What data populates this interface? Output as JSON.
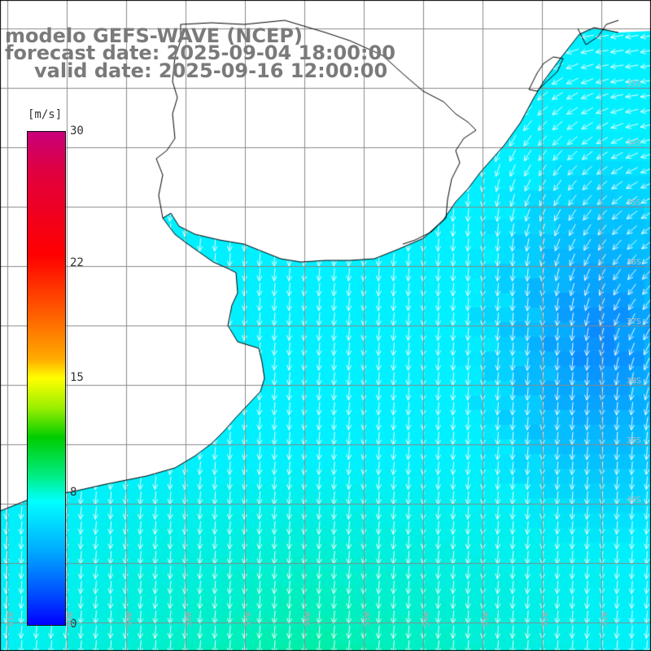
{
  "title": {
    "line1": "modelo GEFS-WAVE (NCEP)",
    "line2": "forecast date: 2025-09-04 18:00:00",
    "line3": "valid date: 2025-09-16 12:00:00"
  },
  "colorbar": {
    "unit": "[m/s]",
    "ticks": [
      {
        "label": "30",
        "value": 30
      },
      {
        "label": "22",
        "value": 22
      },
      {
        "label": "15",
        "value": 15
      },
      {
        "label": "8",
        "value": 8
      },
      {
        "label": "0",
        "value": 0
      }
    ],
    "colors": [
      "#0000ff",
      "#0055ff",
      "#00aaff",
      "#00ffff",
      "#00ee88",
      "#00cc00",
      "#99ee00",
      "#ffff00",
      "#ffaa00",
      "#ff6600",
      "#ff0000",
      "#e00040",
      "#c8007a"
    ]
  },
  "axes": {
    "lon_labels": [
      "61W",
      "60W",
      "59W",
      "58W",
      "57W",
      "56W",
      "55W",
      "54W",
      "53W",
      "52W",
      "51W"
    ],
    "lat_labels": [
      "33S",
      "34S",
      "35S",
      "36S",
      "37S",
      "38S",
      "39S",
      "40S"
    ]
  },
  "field": {
    "variable": "wind speed",
    "units": "m/s",
    "wind_direction": "from north/northeast",
    "land_color": "#ffffff",
    "grid_color": "#888888",
    "coast_color": "#000000"
  }
}
